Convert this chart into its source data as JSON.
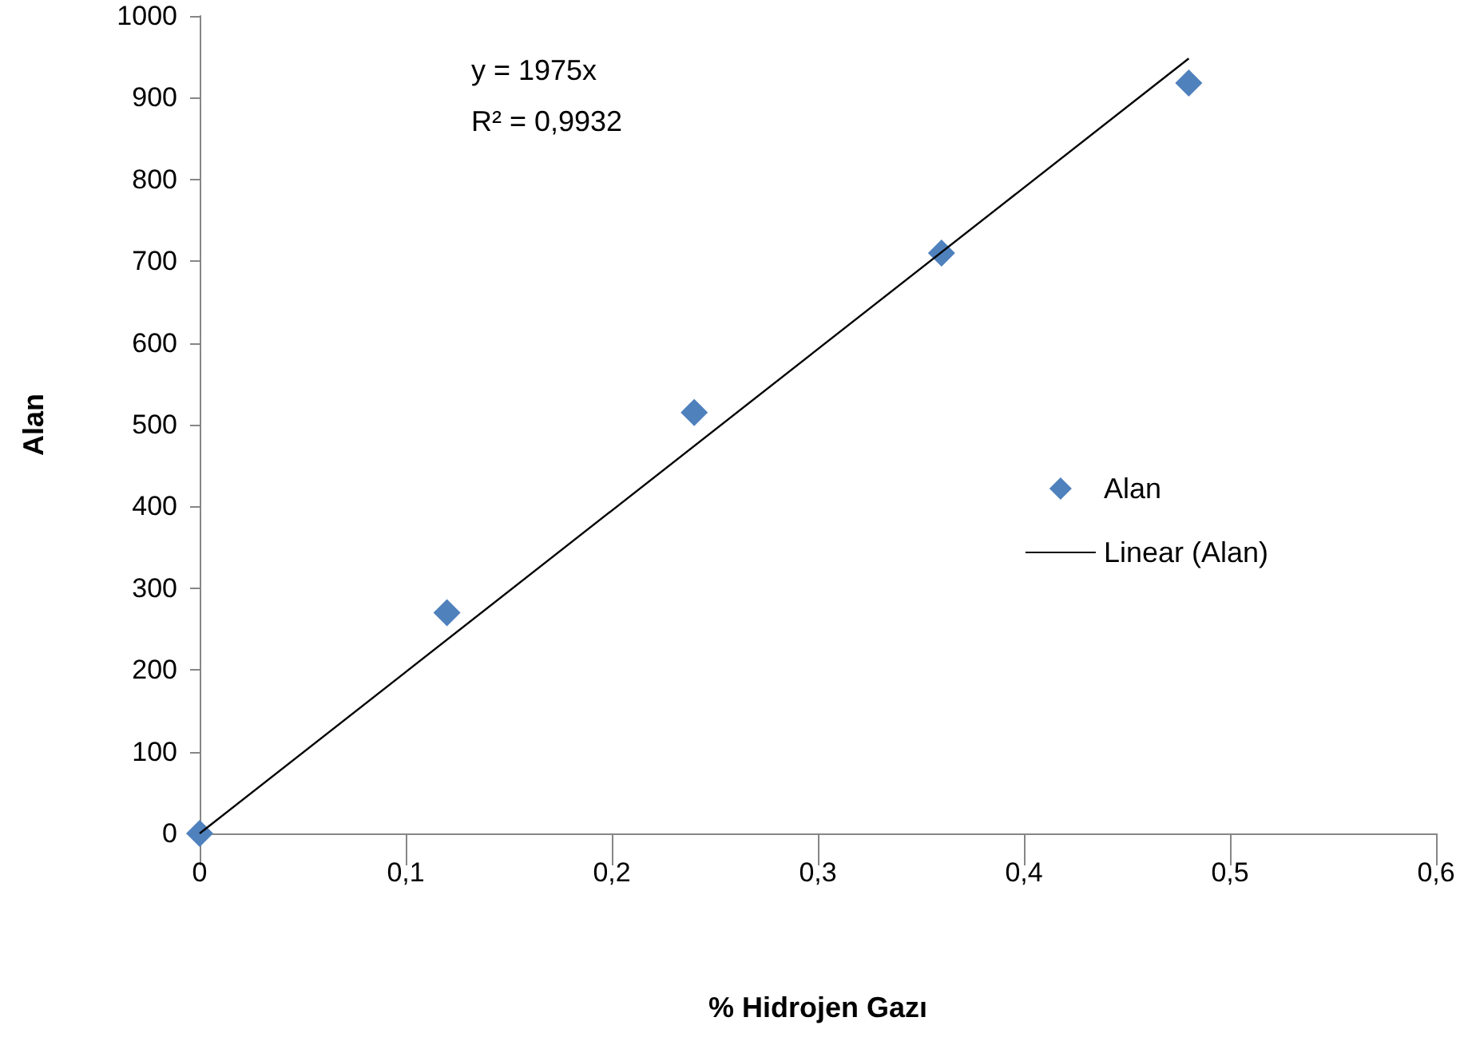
{
  "chart_data": {
    "type": "scatter",
    "xlabel": "% Hidrojen Gazı",
    "ylabel": "Alan",
    "annotations": [
      "y = 1975x",
      "R² = 0,9932"
    ],
    "series": [
      {
        "name": "Alan",
        "marker": "diamond",
        "color": "#4f81bd",
        "x": [
          0,
          0.12,
          0.24,
          0.36,
          0.48
        ],
        "values": [
          0,
          270,
          515,
          710,
          918
        ]
      },
      {
        "name": "Linear (Alan)",
        "type": "line",
        "marker": "none",
        "color": "#000000",
        "x": [
          0,
          0.48
        ],
        "values": [
          0,
          948
        ]
      }
    ],
    "xlim": [
      0,
      0.6
    ],
    "xticks": [
      0,
      {
        "value": 0.1,
        "label": "0,1"
      },
      {
        "value": 0.2,
        "label": "0,2"
      },
      {
        "value": 0.3,
        "label": "0,3"
      },
      {
        "value": 0.4,
        "label": "0,4"
      },
      {
        "value": 0.5,
        "label": "0,5"
      },
      {
        "value": 0.6,
        "label": "0,6"
      }
    ],
    "ylim": [
      0,
      1000
    ],
    "yticks": [
      0,
      100,
      200,
      300,
      400,
      500,
      600,
      700,
      800,
      900,
      1000
    ],
    "grid": false,
    "legend": "right"
  }
}
